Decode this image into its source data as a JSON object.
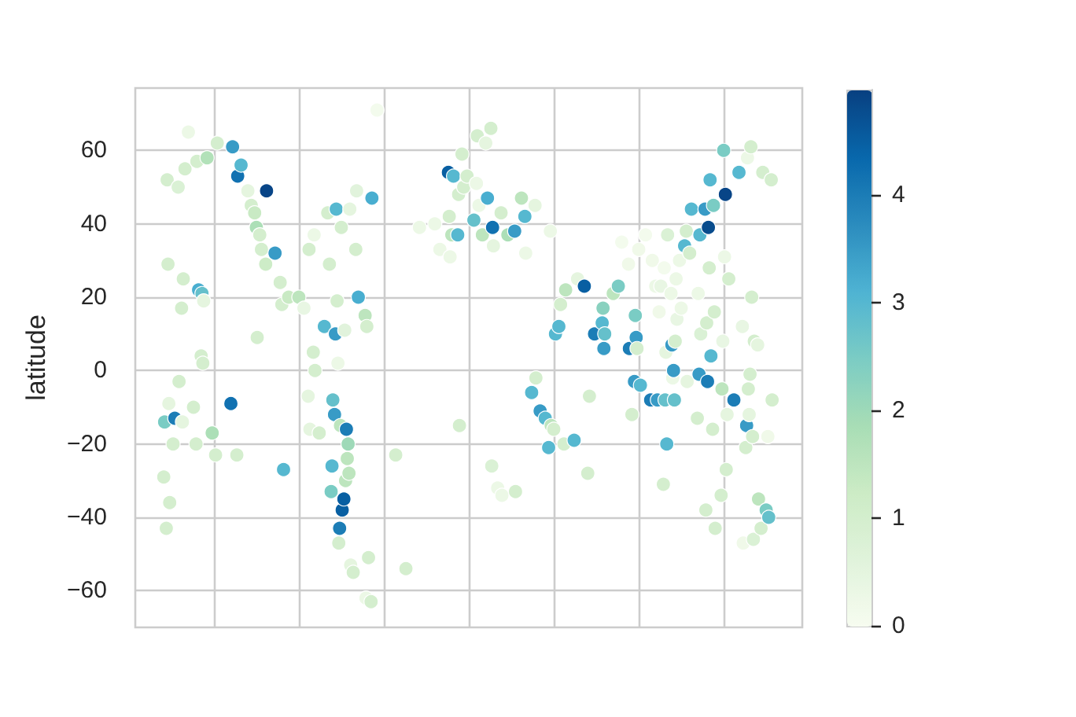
{
  "chart_data": {
    "type": "scatter",
    "ylabel": "latitude",
    "marker": "circle",
    "grid": true,
    "tick_labels": "y",
    "categories": [
      null,
      null,
      null,
      null,
      null,
      null,
      null,
      null,
      null,
      null,
      null,
      null,
      null,
      null,
      null,
      null,
      null,
      null,
      null,
      null,
      null,
      null,
      null,
      null,
      null,
      null,
      null,
      null,
      null,
      null,
      null,
      null,
      null,
      null,
      null,
      null,
      null,
      null,
      null,
      null,
      null,
      null,
      null,
      null,
      null,
      null,
      null,
      null,
      null,
      null,
      null,
      null,
      null,
      null,
      null,
      null,
      null,
      null,
      null,
      null,
      null,
      null,
      null,
      null,
      null,
      null,
      null,
      null,
      null,
      null,
      null,
      null,
      null,
      null,
      null,
      null,
      null,
      null,
      null,
      null,
      null,
      null,
      null,
      null,
      null,
      null,
      null,
      null,
      null,
      null,
      null,
      null,
      null,
      null,
      null,
      null,
      null,
      null,
      null,
      null,
      null,
      null,
      null,
      null,
      null,
      null,
      null,
      null,
      null,
      null,
      null,
      null,
      null,
      null,
      null,
      null,
      null,
      null,
      null,
      null,
      null,
      null,
      null,
      null,
      null,
      null,
      null,
      null,
      null,
      null,
      null,
      null,
      null,
      null,
      null,
      null,
      null,
      null,
      null,
      null,
      null,
      null,
      null,
      null,
      null,
      null,
      null,
      null,
      null,
      null,
      null,
      null,
      null,
      null,
      null,
      null,
      null,
      null,
      null,
      null,
      null,
      null,
      null,
      null,
      null,
      null,
      null,
      null,
      null,
      null,
      null,
      null,
      null,
      null,
      null,
      null,
      null,
      null,
      null,
      null,
      null,
      null,
      null,
      null,
      null,
      null,
      null,
      null,
      null,
      null,
      null,
      null,
      null,
      null,
      null,
      null,
      null,
      null,
      null,
      null,
      null,
      null,
      null,
      null,
      null,
      null,
      null,
      null,
      null,
      null,
      null,
      null,
      null,
      null,
      null,
      null,
      null,
      null,
      null,
      null,
      null,
      null,
      null,
      null,
      null,
      null,
      null,
      null,
      null,
      null,
      null,
      null,
      null,
      null,
      null,
      null,
      null,
      null,
      null,
      null,
      null,
      null,
      null,
      null,
      null,
      null,
      null,
      null,
      null,
      null,
      null,
      null,
      null,
      null,
      null,
      null,
      null,
      null,
      null,
      null,
      null,
      null,
      null,
      null,
      null,
      null,
      null,
      null,
      null,
      null,
      null,
      null,
      null,
      null,
      null,
      null,
      null,
      null,
      null,
      null,
      null,
      null,
      null,
      null,
      null,
      null,
      null,
      null,
      null,
      null,
      null,
      null,
      null,
      null,
      null,
      null,
      null,
      null,
      null,
      null,
      null,
      null,
      null,
      null,
      null,
      null,
      null,
      null,
      null,
      null,
      null,
      null,
      null,
      null,
      null,
      null,
      null,
      null,
      null,
      null,
      null,
      null,
      null,
      null,
      null,
      null,
      null,
      null,
      null,
      null,
      null,
      null,
      null,
      null,
      null,
      null,
      null,
      null,
      null,
      null,
      null,
      null,
      null,
      null,
      null,
      null,
      null,
      null,
      null,
      null,
      null,
      null,
      null,
      null,
      null,
      null,
      null,
      null,
      null,
      null,
      null,
      null,
      null,
      null,
      null,
      null,
      null,
      null,
      null,
      null,
      null,
      null,
      null,
      null,
      null,
      null,
      null,
      null,
      null,
      null,
      null,
      null,
      null,
      null,
      null,
      null,
      null,
      null,
      null,
      null,
      null,
      null,
      null,
      null,
      null,
      null,
      null,
      null,
      null,
      null,
      null,
      null,
      null,
      null,
      null,
      null,
      null,
      null,
      null,
      null,
      null,
      null,
      null,
      null,
      null,
      null,
      null,
      null,
      null,
      null,
      null,
      null,
      null,
      null,
      null,
      null,
      null,
      null,
      null,
      null,
      null,
      null,
      null,
      null,
      null,
      null,
      null,
      null,
      null,
      null,
      null,
      null,
      null,
      null,
      null,
      null,
      null,
      null,
      null,
      null,
      null,
      null,
      null,
      null,
      null,
      null,
      null,
      null,
      null,
      null,
      null,
      null,
      null,
      null,
      null,
      null,
      null,
      null,
      null,
      null,
      null,
      null,
      null,
      null,
      null,
      null,
      null,
      null,
      null,
      null,
      null,
      null,
      null,
      null,
      null,
      null,
      null,
      null,
      null,
      null,
      null,
      null,
      null,
      null,
      null,
      null,
      null,
      null,
      null,
      null,
      null,
      null,
      null,
      null,
      null,
      null,
      null,
      null,
      null,
      null,
      null,
      null,
      null,
      null,
      null,
      null,
      null,
      null,
      null,
      null,
      null,
      null,
      null,
      null,
      null,
      null,
      null,
      null,
      null,
      null,
      null,
      null,
      null,
      null,
      null,
      null,
      null,
      null,
      null,
      null,
      null,
      null,
      null,
      null,
      null,
      null,
      null,
      null,
      null,
      null,
      null,
      null,
      null,
      null,
      null,
      null,
      null,
      null,
      null,
      null,
      null,
      null,
      null,
      null,
      null,
      null,
      null,
      null,
      null,
      null,
      null,
      null,
      null,
      null,
      null,
      null,
      null,
      null,
      null,
      null,
      null,
      null,
      null,
      null,
      null,
      null,
      null,
      null,
      null,
      null,
      null,
      null,
      null,
      null,
      null,
      null,
      null,
      null,
      null,
      null,
      null,
      null,
      null,
      null,
      null,
      null,
      null,
      null,
      null,
      null,
      null,
      null,
      null,
      null,
      null,
      null,
      null,
      null,
      null,
      null,
      null,
      null,
      null,
      null,
      null,
      null,
      null,
      null,
      null,
      null,
      null,
      null,
      null,
      null,
      null,
      null,
      null,
      null,
      null,
      null,
      null,
      null,
      null,
      null,
      null,
      null,
      null,
      null,
      null,
      null,
      null,
      null,
      null,
      null,
      null,
      null,
      null,
      null,
      null,
      null,
      null,
      null,
      null,
      null,
      null,
      null,
      null,
      null,
      null,
      null,
      null,
      null,
      null,
      null,
      null,
      null,
      null,
      null,
      null,
      null,
      null,
      null,
      null,
      null,
      null,
      null,
      null,
      null,
      null,
      null,
      null,
      null,
      null,
      null,
      null,
      null,
      null,
      null,
      null,
      null,
      null,
      null,
      null,
      null,
      null,
      null,
      null,
      null,
      null,
      null,
      null,
      null,
      null,
      null,
      null,
      null,
      null,
      null,
      null,
      null,
      null,
      null,
      null,
      null,
      null,
      null,
      null,
      null,
      null,
      null,
      null,
      null,
      null,
      null,
      null,
      null,
      null,
      null,
      null,
      null,
      null,
      null,
      null,
      null,
      null,
      null,
      null,
      null,
      null,
      null,
      null,
      null,
      null,
      null,
      null,
      null,
      null,
      null,
      null,
      null,
      null,
      null,
      null,
      null,
      null,
      null,
      null,
      null,
      null,
      null,
      null,
      null,
      null,
      null,
      null,
      null,
      null,
      null,
      null,
      null,
      null,
      null,
      null,
      null,
      null
    ],
    "ylim": [
      -70,
      77
    ],
    "yticks": [
      {
        "value": -60,
        "label": "−60"
      },
      {
        "value": -40,
        "label": "−40"
      },
      {
        "value": -20,
        "label": "−20"
      },
      0,
      20,
      40,
      60
    ],
    "clim": [
      0,
      4.98
    ],
    "cticks": [
      0,
      1,
      2,
      3,
      4
    ],
    "values": [
      null,
      null,
      null,
      null,
      null,
      null,
      null,
      null,
      null,
      null,
      null,
      null,
      null,
      null,
      null,
      null,
      null,
      null,
      null,
      null,
      null,
      null,
      null,
      null,
      null,
      null,
      null,
      null,
      null,
      null,
      null,
      null,
      null,
      -29,
      -14,
      null,
      -43,
      52,
      29,
      -9,
      -36,
      null,
      null,
      null,
      -20,
      null,
      -13,
      null,
      null,
      null,
      50,
      -3,
      null,
      null,
      17,
      -14,
      25,
      null,
      55,
      null,
      null,
      null,
      65,
      null,
      null,
      null,
      null,
      null,
      -10,
      null,
      null,
      -20,
      57,
      null,
      22,
      null,
      null,
      4,
      21,
      2,
      19,
      null,
      null,
      null,
      58,
      null,
      null,
      null,
      null,
      null,
      -17,
      null,
      null,
      null,
      -23,
      null,
      62,
      null,
      null,
      null,
      null,
      null,
      null,
      null,
      null,
      null,
      null,
      null,
      null,
      null,
      null,
      null,
      -9,
      null,
      61,
      null,
      null,
      null,
      null,
      -23,
      53,
      null,
      null,
      null,
      56,
      null,
      null,
      null,
      null,
      null,
      null,
      null,
      49,
      null,
      null,
      null,
      45,
      null,
      null,
      null,
      43,
      null,
      39,
      9,
      null,
      null,
      37,
      null,
      33,
      null,
      null,
      null,
      null,
      29,
      49,
      null,
      null,
      null,
      null,
      null,
      null,
      null,
      null,
      null,
      32,
      null,
      null,
      null,
      null,
      null,
      24,
      null,
      18,
      null,
      -27,
      null,
      null,
      null,
      null,
      null,
      20,
      null,
      null,
      null,
      null,
      null,
      null,
      null,
      null,
      null,
      null,
      null,
      20,
      null,
      null,
      null,
      null,
      null,
      17,
      null,
      null,
      null,
      null,
      -7,
      33,
      -16,
      null,
      null,
      null,
      5,
      37,
      0,
      null,
      null,
      null,
      null,
      -17,
      null,
      null,
      null,
      null,
      null,
      12,
      null,
      null,
      null,
      43,
      null,
      29,
      null,
      -33,
      -26,
      -8,
      null,
      -12,
      10,
      44,
      19,
      2,
      -47,
      -43,
      -15,
      39,
      -38,
      null,
      -35,
      11,
      -30,
      -16,
      -24,
      -20,
      -28,
      44,
      -53,
      null,
      null,
      -55,
      null,
      null,
      33,
      49,
      null,
      20,
      null,
      null,
      null,
      null,
      null,
      null,
      null,
      15,
      -62,
      12,
      null,
      -51,
      null,
      null,
      -63,
      47,
      null,
      null,
      null,
      null,
      null,
      71,
      null,
      null,
      null,
      null,
      null,
      null,
      null,
      null,
      null,
      null,
      null,
      null,
      null,
      null,
      null,
      null,
      null,
      null,
      null,
      null,
      null,
      -23,
      null,
      null,
      null,
      null,
      null,
      null,
      null,
      null,
      null,
      null,
      null,
      -54,
      null,
      null,
      null,
      null,
      null,
      null,
      null,
      null,
      null,
      null,
      null,
      null,
      null,
      null,
      null,
      39,
      null,
      null,
      null,
      null,
      null,
      null,
      null,
      null,
      null,
      null,
      null,
      null,
      null,
      null,
      null,
      null,
      null,
      40,
      null,
      null,
      null,
      null,
      null,
      33,
      null,
      null,
      null,
      null,
      null,
      null,
      null,
      null,
      null,
      54,
      42,
      31,
      null,
      37,
      null,
      53,
      null,
      null,
      null,
      null,
      37,
      48,
      -15,
      null,
      null,
      59,
      null,
      50,
      null,
      null,
      null,
      53,
      null,
      null,
      null,
      null,
      null,
      null,
      null,
      41,
      null,
      null,
      51,
      64,
      null,
      45,
      null,
      null,
      null,
      37,
      null,
      null,
      null,
      62,
      null,
      47,
      null,
      null,
      null,
      66,
      -26,
      39,
      34,
      null,
      null,
      null,
      null,
      -32,
      null,
      null,
      null,
      43,
      -34,
      null,
      null,
      null,
      null,
      null,
      null,
      37,
      null,
      null,
      null,
      null,
      null,
      null,
      null,
      38,
      -33,
      null,
      null,
      null,
      null,
      null,
      null,
      47,
      null,
      null,
      null,
      42,
      32,
      null,
      null,
      null,
      null,
      null,
      null,
      -6,
      null,
      null,
      null,
      45,
      -2,
      null,
      null,
      null,
      null,
      -11,
      null,
      null,
      null,
      null,
      null,
      -13,
      null,
      null,
      null,
      -21,
      null,
      38,
      -15,
      null,
      null,
      -16,
      null,
      10,
      null,
      null,
      null,
      12,
      null,
      18,
      null,
      null,
      null,
      -20,
      null,
      22,
      null,
      null,
      null,
      null,
      null,
      null,
      null,
      null,
      null,
      -19,
      null,
      null,
      null,
      25,
      null,
      null,
      null,
      null,
      null,
      null,
      null,
      23,
      null,
      null,
      null,
      -28,
      null,
      -7,
      null,
      null,
      null,
      null,
      null,
      10,
      null,
      null,
      null,
      null,
      null,
      null,
      null,
      null,
      13,
      17,
      6,
      10,
      null,
      null,
      null,
      null,
      null,
      null,
      null,
      null,
      null,
      21,
      null,
      null,
      null,
      null,
      null,
      23,
      null,
      null,
      null,
      35,
      null,
      null,
      null,
      null,
      null,
      null,
      null,
      29,
      6,
      null,
      null,
      -12,
      null,
      null,
      -3,
      15,
      9,
      6,
      null,
      33,
      null,
      -4,
      null,
      null,
      null,
      null,
      null,
      37,
      null,
      null,
      null,
      null,
      null,
      -8,
      null,
      30,
      null,
      null,
      null,
      23,
      null,
      -8,
      null,
      16,
      null,
      23,
      null,
      null,
      -31,
      28,
      -8,
      5,
      -20,
      37,
      null,
      null,
      null,
      21,
      7,
      -2,
      0,
      -8,
      8,
      25,
      14,
      null,
      null,
      30,
      null,
      17,
      null,
      null,
      null,
      34,
      null,
      38,
      -3,
      null,
      null,
      32,
      null,
      44,
      null,
      null,
      null,
      null,
      null,
      null,
      -13,
      21,
      -1,
      37,
      10,
      null,
      null,
      null,
      null,
      44,
      -38,
      13,
      -3,
      39,
      28,
      52,
      4,
      null,
      -16,
      45,
      16,
      -43,
      null,
      null,
      null,
      null,
      null,
      null,
      -34,
      -5,
      8,
      60,
      31,
      48,
      -27,
      -12,
      null,
      25,
      null,
      null,
      null,
      null,
      null,
      -8,
      null,
      null,
      null,
      null,
      null,
      54,
      null,
      null,
      null,
      12,
      -47,
      null,
      null,
      -21,
      -15,
      58,
      -5,
      -12,
      -1,
      61,
      20,
      -18,
      -46,
      8,
      null,
      null,
      null,
      7,
      -35,
      null,
      null,
      -43,
      null,
      54,
      null,
      null,
      null,
      -38,
      null,
      -18,
      -40,
      null,
      null,
      52,
      -8,
      null,
      null,
      null,
      null,
      null,
      null,
      null,
      null,
      null,
      null,
      null,
      null,
      null,
      null,
      null,
      null,
      null,
      null,
      null,
      null,
      null,
      null,
      null,
      null,
      null,
      null,
      null,
      null,
      null,
      null,
      null,
      null,
      null,
      null,
      null
    ],
    "cvalues": [
      null,
      null,
      null,
      null,
      null,
      null,
      null,
      null,
      null,
      null,
      null,
      null,
      null,
      null,
      null,
      null,
      null,
      null,
      null,
      null,
      null,
      null,
      null,
      null,
      null,
      null,
      null,
      null,
      null,
      null,
      null,
      null,
      null,
      1.0,
      2.5,
      null,
      1.0,
      1.0,
      1.0,
      0.5,
      1.0,
      null,
      null,
      null,
      1.0,
      null,
      4.0,
      null,
      null,
      null,
      0.8,
      1.0,
      null,
      null,
      1.0,
      0.5,
      1.0,
      null,
      1.0,
      null,
      null,
      null,
      0.3,
      null,
      null,
      null,
      null,
      null,
      1.0,
      null,
      null,
      1.0,
      1.0,
      null,
      3.2,
      null,
      null,
      1.0,
      2.8,
      1.0,
      0.5,
      null,
      null,
      null,
      1.7,
      null,
      null,
      null,
      null,
      null,
      1.8,
      null,
      null,
      null,
      1.0,
      null,
      1.0,
      null,
      null,
      null,
      null,
      null,
      null,
      null,
      null,
      null,
      null,
      null,
      null,
      null,
      null,
      null,
      4.2,
      null,
      3.5,
      null,
      null,
      null,
      null,
      1.0,
      4.2,
      null,
      null,
      null,
      3.0,
      null,
      null,
      null,
      null,
      null,
      null,
      null,
      0.5,
      null,
      null,
      null,
      1.0,
      null,
      null,
      null,
      1.3,
      null,
      1.8,
      1.0,
      null,
      null,
      1.0,
      null,
      1.0,
      null,
      null,
      null,
      null,
      1.2,
      4.9,
      null,
      null,
      null,
      null,
      null,
      null,
      null,
      null,
      null,
      3.5,
      null,
      null,
      null,
      null,
      null,
      1.0,
      null,
      1.0,
      null,
      3.0,
      null,
      null,
      null,
      null,
      null,
      1.3,
      null,
      null,
      null,
      null,
      null,
      null,
      null,
      null,
      null,
      null,
      null,
      1.5,
      null,
      null,
      null,
      null,
      null,
      0.4,
      null,
      null,
      null,
      null,
      0.5,
      1.0,
      0.5,
      null,
      null,
      null,
      1.0,
      0.3,
      1.0,
      null,
      null,
      null,
      null,
      1.0,
      null,
      null,
      null,
      null,
      null,
      3.0,
      null,
      null,
      null,
      1.0,
      null,
      1.0,
      null,
      2.5,
      3.0,
      2.8,
      null,
      3.5,
      3.5,
      3.0,
      1.0,
      0.3,
      1.0,
      4.0,
      1.5,
      1.0,
      4.5,
      null,
      4.5,
      0.6,
      1.5,
      4.0,
      1.5,
      2.0,
      1.5,
      0.5,
      0.5,
      null,
      null,
      1.0,
      null,
      null,
      1.0,
      0.6,
      null,
      3.2,
      null,
      null,
      null,
      null,
      null,
      null,
      null,
      1.5,
      0.3,
      1.0,
      null,
      1.0,
      null,
      null,
      1.0,
      3.2,
      null,
      null,
      null,
      null,
      null,
      0.1,
      null,
      null,
      null,
      null,
      null,
      null,
      null,
      null,
      null,
      null,
      null,
      null,
      null,
      null,
      null,
      null,
      null,
      null,
      null,
      null,
      null,
      1.0,
      null,
      null,
      null,
      null,
      null,
      null,
      null,
      null,
      null,
      null,
      null,
      1.0,
      null,
      null,
      null,
      null,
      null,
      null,
      null,
      null,
      null,
      null,
      null,
      null,
      null,
      null,
      null,
      0.3,
      null,
      null,
      null,
      null,
      null,
      null,
      null,
      null,
      null,
      null,
      null,
      null,
      null,
      null,
      null,
      null,
      null,
      0.3,
      null,
      null,
      null,
      null,
      null,
      0.3,
      null,
      null,
      null,
      null,
      null,
      null,
      null,
      null,
      null,
      4.5,
      1.0,
      0.3,
      null,
      1.5,
      null,
      3.0,
      null,
      null,
      null,
      null,
      3.0,
      1.0,
      1.0,
      null,
      null,
      1.0,
      null,
      1.0,
      null,
      null,
      null,
      1.0,
      null,
      null,
      null,
      null,
      null,
      null,
      null,
      2.8,
      null,
      null,
      0.3,
      1.0,
      null,
      0.3,
      null,
      null,
      null,
      1.5,
      null,
      null,
      null,
      0.5,
      null,
      3.2,
      null,
      null,
      null,
      1.0,
      0.8,
      4.2,
      0.5,
      null,
      null,
      null,
      null,
      0.3,
      null,
      null,
      null,
      1.0,
      0.3,
      null,
      null,
      null,
      null,
      null,
      null,
      1.8,
      null,
      null,
      null,
      null,
      null,
      null,
      null,
      3.5,
      1.0,
      null,
      null,
      null,
      null,
      null,
      null,
      1.5,
      null,
      null,
      null,
      3.0,
      0.3,
      null,
      null,
      null,
      null,
      null,
      null,
      3.0,
      null,
      null,
      null,
      0.5,
      1.0,
      null,
      null,
      null,
      null,
      3.5,
      null,
      null,
      null,
      null,
      null,
      3.0,
      null,
      null,
      null,
      3.0,
      null,
      0.3,
      1.5,
      null,
      null,
      1.0,
      null,
      3.0,
      null,
      null,
      null,
      3.0,
      null,
      1.0,
      null,
      null,
      null,
      1.0,
      null,
      1.5,
      null,
      null,
      null,
      null,
      null,
      null,
      null,
      null,
      null,
      3.0,
      null,
      null,
      null,
      0.5,
      null,
      null,
      null,
      null,
      null,
      null,
      null,
      4.5,
      null,
      null,
      null,
      1.0,
      null,
      1.0,
      null,
      null,
      null,
      null,
      null,
      4.0,
      null,
      null,
      null,
      null,
      null,
      null,
      null,
      null,
      3.0,
      2.3,
      3.5,
      2.8,
      null,
      null,
      null,
      null,
      null,
      null,
      null,
      null,
      null,
      1.5,
      null,
      null,
      null,
      null,
      null,
      2.5,
      null,
      null,
      null,
      0.1,
      null,
      null,
      null,
      null,
      null,
      null,
      null,
      0.2,
      4.0,
      null,
      null,
      1.0,
      null,
      null,
      3.5,
      2.5,
      3.5,
      1.0,
      null,
      0.2,
      null,
      3.0,
      null,
      null,
      null,
      null,
      null,
      0.1,
      null,
      null,
      null,
      null,
      null,
      4.0,
      null,
      0.2,
      null,
      null,
      null,
      0.3,
      null,
      3.5,
      null,
      0.2,
      null,
      0.4,
      null,
      null,
      1.0,
      0.1,
      2.8,
      0.5,
      3.0,
      0.8,
      null,
      null,
      null,
      0.3,
      3.5,
      0.3,
      3.5,
      2.8,
      1.0,
      0.3,
      0.4,
      null,
      null,
      0.3,
      null,
      0.3,
      null,
      null,
      null,
      3.0,
      null,
      1.0,
      0.5,
      null,
      null,
      1.0,
      null,
      3.0,
      null,
      null,
      null,
      null,
      null,
      null,
      1.0,
      0.3,
      3.5,
      3.0,
      0.8,
      null,
      null,
      null,
      null,
      3.5,
      1.0,
      1.0,
      4.0,
      4.8,
      1.0,
      3.0,
      3.0,
      null,
      1.0,
      2.5,
      1.0,
      1.0,
      null,
      null,
      null,
      null,
      null,
      null,
      1.0,
      1.5,
      0.4,
      2.5,
      0.3,
      4.9,
      1.0,
      0.5,
      null,
      1.0,
      null,
      null,
      null,
      null,
      null,
      4.0,
      null,
      null,
      null,
      null,
      null,
      3.0,
      null,
      null,
      null,
      0.4,
      0.2,
      null,
      null,
      1.0,
      3.5,
      0.3,
      1.0,
      0.5,
      1.0,
      1.0,
      1.0,
      1.0,
      0.8,
      1.0,
      null,
      null,
      null,
      0.5,
      1.5,
      null,
      null,
      1.0,
      null,
      1.0,
      null,
      null,
      null,
      2.5,
      null,
      0.2,
      2.8,
      null,
      null,
      1.0,
      1.0,
      null,
      null,
      null,
      null,
      null,
      null,
      null,
      null,
      null,
      null,
      null,
      null,
      null,
      null,
      null,
      null,
      null,
      null,
      null,
      null,
      null,
      null,
      null,
      null,
      null,
      null,
      null,
      null,
      null,
      null,
      null,
      null,
      null,
      null,
      null
    ]
  }
}
